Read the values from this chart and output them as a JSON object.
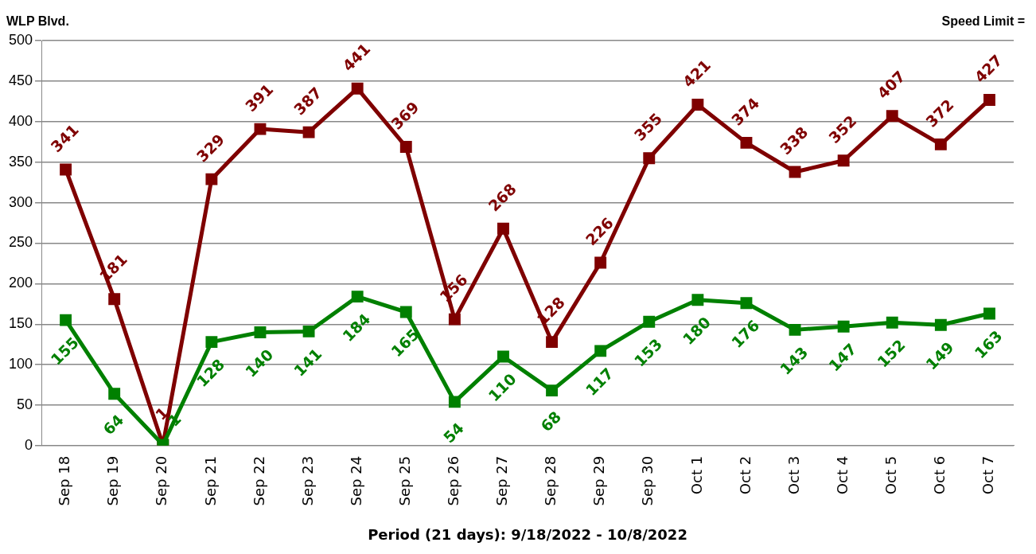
{
  "chart_data": {
    "type": "line",
    "title": "WLP Blvd.",
    "xlabel": "Period (21 days): 9/18/2022 - 10/8/2022",
    "annotations": [
      "Speed Limit ="
    ],
    "categories": [
      "Sep 18",
      "Sep 19",
      "Sep 20",
      "Sep 21",
      "Sep 22",
      "Sep 23",
      "Sep 24",
      "Sep 25",
      "Sep 26",
      "Sep 27",
      "Sep 28",
      "Sep 29",
      "Sep 30",
      "Oct 1",
      "Oct 2",
      "Oct 3",
      "Oct 4",
      "Oct 5",
      "Oct 6",
      "Oct 7"
    ],
    "series": [
      {
        "color": "#7f0000",
        "values": [
          341,
          181,
          1,
          329,
          391,
          387,
          441,
          369,
          156,
          268,
          128,
          226,
          355,
          421,
          374,
          338,
          352,
          407,
          372,
          427
        ]
      },
      {
        "color": "#008000",
        "values": [
          155,
          64,
          1,
          128,
          140,
          141,
          184,
          165,
          54,
          110,
          68,
          117,
          153,
          180,
          176,
          143,
          147,
          152,
          149,
          163
        ]
      }
    ],
    "ylim": [
      0,
      500
    ],
    "yticks": [
      0,
      50,
      100,
      150,
      200,
      250,
      300,
      350,
      400,
      450,
      500
    ],
    "grid": "y",
    "marker": "square",
    "line_style": "solid",
    "data_labels": true,
    "legend": false
  }
}
